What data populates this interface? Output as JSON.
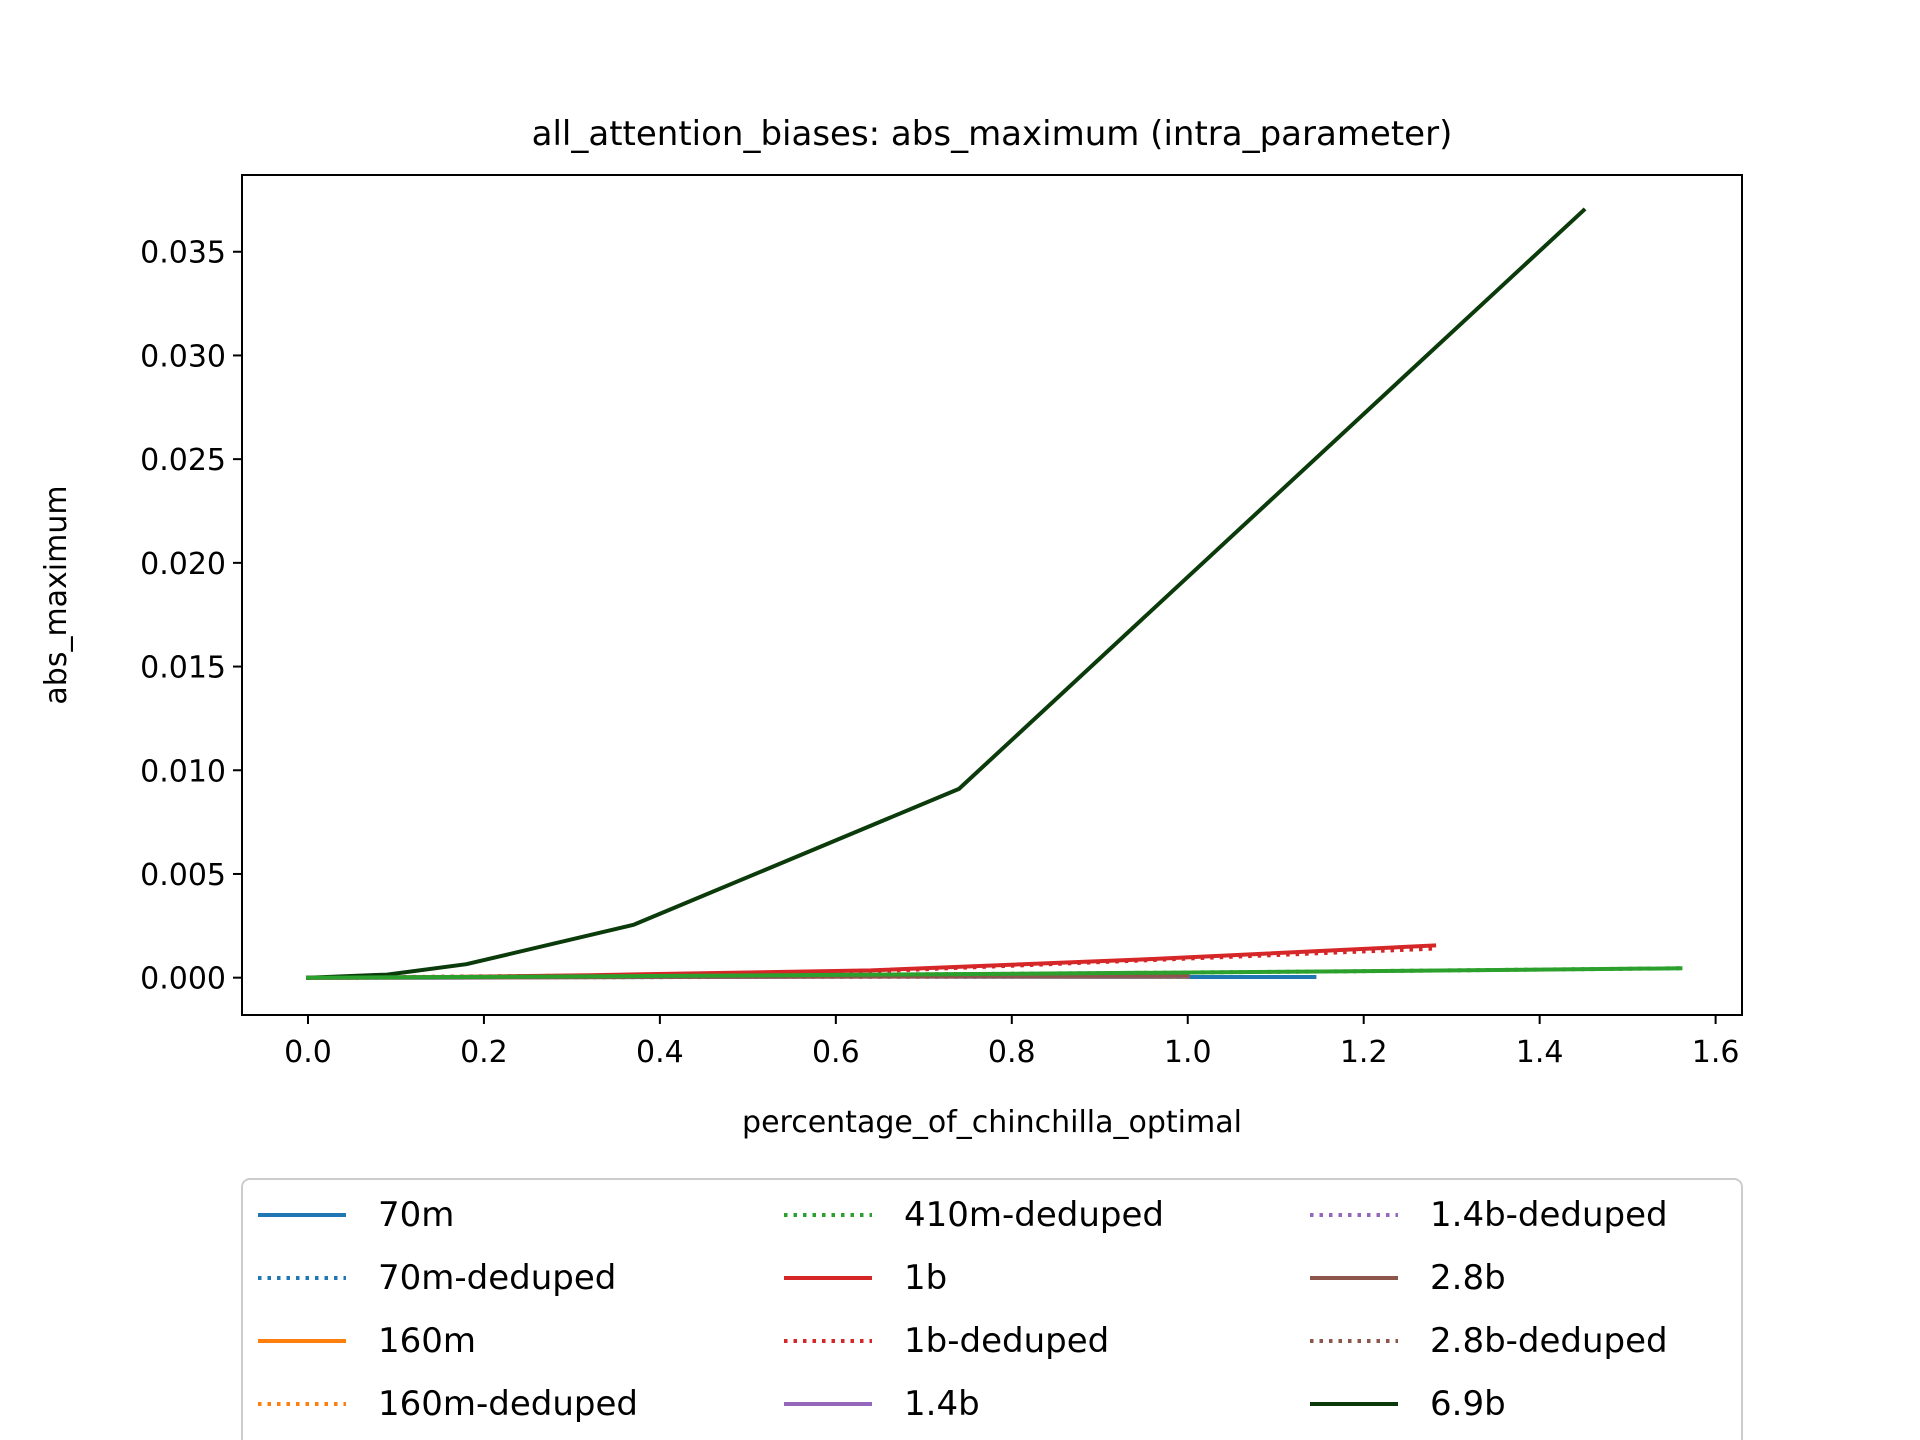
{
  "chart_data": {
    "type": "line",
    "title": "all_attention_biases: abs_maximum (intra_parameter)",
    "xlabel": "percentage_of_chinchilla_optimal",
    "ylabel": "abs_maximum",
    "xlim": [
      -0.075,
      1.63
    ],
    "ylim": [
      -0.0018,
      0.0387
    ],
    "xticks": [
      0.0,
      0.2,
      0.4,
      0.6,
      0.8,
      1.0,
      1.2,
      1.4,
      1.6
    ],
    "xtick_labels": [
      "0.0",
      "0.2",
      "0.4",
      "0.6",
      "0.8",
      "1.0",
      "1.2",
      "1.4",
      "1.6"
    ],
    "yticks": [
      0.0,
      0.005,
      0.01,
      0.015,
      0.02,
      0.025,
      0.03,
      0.035
    ],
    "ytick_labels": [
      "0.000",
      "0.005",
      "0.010",
      "0.015",
      "0.020",
      "0.025",
      "0.030",
      "0.035"
    ],
    "legend_placement": "below plot, 3 columns",
    "series": [
      {
        "name": "70m",
        "color": "#1f77b4",
        "style": "solid",
        "x": [
          0.0,
          0.143,
          0.286,
          0.572,
          1.0,
          1.144
        ],
        "y": [
          0.0,
          0.0,
          2e-05,
          5e-05,
          3e-05,
          3e-05
        ]
      },
      {
        "name": "70m-deduped",
        "color": "#1f77b4",
        "style": "dotted",
        "x": [
          0.0,
          0.572,
          1.144
        ],
        "y": [
          0.0,
          4e-05,
          3e-05
        ]
      },
      {
        "name": "160m",
        "color": "#ff7f0e",
        "style": "solid",
        "x": [
          0.0,
          0.25,
          0.5,
          1.0
        ],
        "y": [
          0.0,
          2e-05,
          4e-05,
          6e-05
        ]
      },
      {
        "name": "160m-deduped",
        "color": "#ff7f0e",
        "style": "dotted",
        "x": [
          0.0,
          0.5,
          1.0
        ],
        "y": [
          0.0,
          3e-05,
          5e-05
        ]
      },
      {
        "name": "410m-deduped",
        "color": "#2ca02c",
        "style": "dotted",
        "x": [
          0.0,
          0.39,
          0.78,
          1.17,
          1.56
        ],
        "y": [
          0.0,
          8e-05,
          0.00018,
          0.0003,
          0.00045
        ]
      },
      {
        "name": "1b",
        "color": "#d62728",
        "style": "solid",
        "x": [
          0.0,
          0.16,
          0.32,
          0.64,
          0.96,
          1.28
        ],
        "y": [
          0.0,
          3e-05,
          0.00012,
          0.00035,
          0.0009,
          0.00155
        ]
      },
      {
        "name": "1b-deduped",
        "color": "#d62728",
        "style": "dotted",
        "x": [
          0.0,
          0.32,
          0.64,
          1.28
        ],
        "y": [
          0.0,
          0.0001,
          0.0003,
          0.0014
        ]
      },
      {
        "name": "1.4b",
        "color": "#9467bd",
        "style": "solid",
        "x": [
          0.0,
          0.5,
          1.0
        ],
        "y": [
          0.0,
          4e-05,
          8e-05
        ]
      },
      {
        "name": "1.4b-deduped",
        "color": "#9467bd",
        "style": "dotted",
        "x": [
          0.0,
          0.5,
          1.0
        ],
        "y": [
          0.0,
          4e-05,
          8e-05
        ]
      },
      {
        "name": "2.8b",
        "color": "#8c564b",
        "style": "solid",
        "x": [
          0.0,
          0.5,
          1.0
        ],
        "y": [
          0.0,
          5e-05,
          0.0001
        ]
      },
      {
        "name": "2.8b-deduped",
        "color": "#8c564b",
        "style": "dotted",
        "x": [
          0.0,
          0.5,
          1.0
        ],
        "y": [
          0.0,
          5e-05,
          0.0001
        ]
      },
      {
        "name": "6.9b",
        "color": "#0b3a0b",
        "style": "solid",
        "x": [
          0.0,
          0.09,
          0.18,
          0.37,
          0.74,
          1.45
        ],
        "y": [
          0.0,
          0.00015,
          0.00065,
          0.00255,
          0.0091,
          0.037
        ]
      },
      {
        "name": "",
        "color": "#2ca02c",
        "style": "solid",
        "x": [
          0.0,
          0.39,
          0.78,
          1.17,
          1.56
        ],
        "y": [
          0.0,
          8e-05,
          0.00018,
          0.0003,
          0.00045
        ]
      }
    ]
  }
}
